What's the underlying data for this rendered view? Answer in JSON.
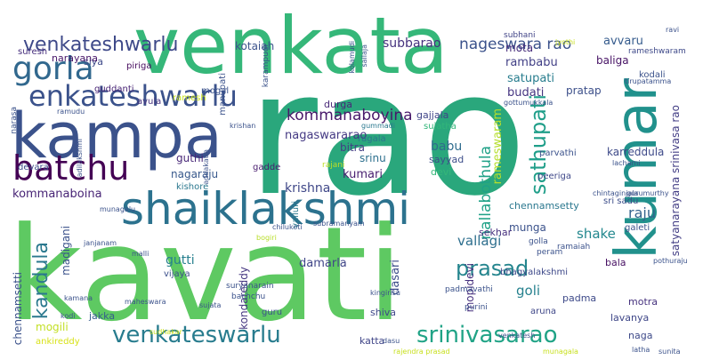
{
  "words": [
    {
      "text": "rao",
      "color": "#2aa77c"
    },
    {
      "text": "kavati",
      "color": "#5ec962"
    },
    {
      "text": "venkata",
      "color": "#35b779"
    },
    {
      "text": "kampa",
      "color": "#3b528b"
    },
    {
      "text": "kumar",
      "color": "#21918c"
    },
    {
      "text": "shaiklakshmi",
      "color": "#2c728e"
    },
    {
      "text": "batchu",
      "color": "#440154"
    },
    {
      "text": "gorla",
      "color": "#31688e"
    },
    {
      "text": "enkateshwarlu",
      "color": "#3b528b"
    },
    {
      "text": "venkateshwarlu",
      "color": "#3e4989"
    },
    {
      "text": "venkateswarlu",
      "color": "#287c8e"
    },
    {
      "text": "srinivasarao",
      "color": "#20a386"
    },
    {
      "text": "sathupati",
      "color": "#1f9e89"
    },
    {
      "text": "prasad",
      "color": "#25858e"
    },
    {
      "text": "kandula",
      "color": "#2a788e"
    },
    {
      "text": "nageswara rao",
      "color": "#3b528b"
    },
    {
      "text": "subbarao",
      "color": "#46327e"
    },
    {
      "text": "avvaru",
      "color": "#365c8d"
    },
    {
      "text": "kommanaboyina",
      "color": "#48186a"
    },
    {
      "text": "nagaswararao",
      "color": "#443983"
    },
    {
      "text": "nallabothula",
      "color": "#1fa187"
    },
    {
      "text": "rameswaram",
      "color": "#b5de2b"
    },
    {
      "text": "karreddula",
      "color": "#3e4a89"
    },
    {
      "text": "satyanarayana srinivasa rao",
      "color": "#433e85"
    },
    {
      "text": "kommanaboina",
      "color": "#482576"
    },
    {
      "text": "babu",
      "color": "#2f6c8e"
    },
    {
      "text": "krishna",
      "color": "#3f4788"
    },
    {
      "text": "vallagi",
      "color": "#2e6f8e"
    },
    {
      "text": "raju",
      "color": "#33638d"
    },
    {
      "text": "shake",
      "color": "#23888e"
    },
    {
      "text": "goli",
      "color": "#26818e"
    },
    {
      "text": "gutti",
      "color": "#27808e"
    },
    {
      "text": "madigani",
      "color": "#3b528b"
    },
    {
      "text": "damarla",
      "color": "#404688"
    },
    {
      "text": "dasari",
      "color": "#3d4d8a"
    },
    {
      "text": "mopidevi",
      "color": "#46307e"
    },
    {
      "text": "kondareddy",
      "color": "#453781"
    },
    {
      "text": "chennamsetti",
      "color": "#3b528b"
    },
    {
      "text": "mogili",
      "color": "#c2df23"
    },
    {
      "text": "ankireddy",
      "color": "#d8e219"
    },
    {
      "text": "jakka",
      "color": "#365d8d"
    },
    {
      "text": "katta",
      "color": "#404688"
    },
    {
      "text": "lavanya",
      "color": "#3f4788"
    },
    {
      "text": "naga",
      "color": "#3e4a89"
    },
    {
      "text": "padma",
      "color": "#3e4a89"
    },
    {
      "text": "motra",
      "color": "#46327e"
    },
    {
      "text": "shiva",
      "color": "#3f4889"
    },
    {
      "text": "bala",
      "color": "#471063"
    },
    {
      "text": "nagaraju",
      "color": "#38598c"
    },
    {
      "text": "kumari",
      "color": "#481f70"
    },
    {
      "text": "srinu",
      "color": "#2d708e"
    },
    {
      "text": "guthi",
      "color": "#482878"
    },
    {
      "text": "bitra",
      "color": "#433d84"
    },
    {
      "text": "durga",
      "color": "#482878"
    },
    {
      "text": "ragala",
      "color": "#2b758e"
    },
    {
      "text": "sujatha",
      "color": "#32b67a"
    },
    {
      "text": "gajjala",
      "color": "#404588"
    },
    {
      "text": "budati",
      "color": "#453581"
    },
    {
      "text": "satupati",
      "color": "#287d8e"
    },
    {
      "text": "rambabu",
      "color": "#424086"
    },
    {
      "text": "baliga",
      "color": "#471365"
    },
    {
      "text": "pratap",
      "color": "#3c4f8a"
    },
    {
      "text": "mota",
      "color": "#472d7b"
    },
    {
      "text": "kotaiah",
      "color": "#3b528b"
    },
    {
      "text": "siya",
      "color": "#3e4989"
    },
    {
      "text": "narayana",
      "color": "#481769"
    },
    {
      "text": "suresh",
      "color": "#472f7d"
    },
    {
      "text": "piriga",
      "color": "#460b5e"
    },
    {
      "text": "mogal",
      "color": "#3b528b"
    },
    {
      "text": "ramesh",
      "color": "#c8e020"
    },
    {
      "text": "avula",
      "color": "#46337f"
    },
    {
      "text": "guddanti",
      "color": "#482475"
    },
    {
      "text": "munga",
      "color": "#3b528b"
    },
    {
      "text": "sekhar",
      "color": "#46307e"
    },
    {
      "text": "devara",
      "color": "#3d4e8a"
    },
    {
      "text": "kishore",
      "color": "#2a778e"
    },
    {
      "text": "gadde",
      "color": "#481c6e"
    },
    {
      "text": "sayyad",
      "color": "#3d4e8a"
    },
    {
      "text": "devi",
      "color": "#35b779"
    },
    {
      "text": "peeriga",
      "color": "#3f4889"
    },
    {
      "text": "parvathi",
      "color": "#3b528b"
    },
    {
      "text": "chennamsetty",
      "color": "#2a778e"
    },
    {
      "text": "sri sadu",
      "color": "#3d4e8a"
    },
    {
      "text": "vijaya",
      "color": "#3c508b"
    },
    {
      "text": "guru",
      "color": "#3b528b"
    },
    {
      "text": "bhagyalakshmi",
      "color": "#3e4989"
    },
    {
      "text": "aruna",
      "color": "#3f4788"
    },
    {
      "text": "galeti",
      "color": "#3b528b"
    },
    {
      "text": "kodali",
      "color": "#3b528b"
    },
    {
      "text": "subhani",
      "color": "#414487"
    },
    {
      "text": "rameshwaram",
      "color": "#3e4989"
    },
    {
      "text": "gummadi",
      "color": "#2a788e"
    },
    {
      "text": "bogiri",
      "color": "#b8de29"
    },
    {
      "text": "bachchu",
      "color": "#3b528b"
    },
    {
      "text": "suryanarain",
      "color": "#3b528b"
    },
    {
      "text": "purini",
      "color": "#3b528b"
    },
    {
      "text": "padmavathi",
      "color": "#3b528b"
    },
    {
      "text": "valluri",
      "color": "#2a788e"
    },
    {
      "text": "rajani",
      "color": "#bddf26"
    },
    {
      "text": "manupati",
      "color": "#3b528b"
    },
    {
      "text": "karampudi",
      "color": "#3b528b"
    },
    {
      "text": "kolamudi",
      "color": "#3b528b"
    },
    {
      "text": "sailaja",
      "color": "#3b528b"
    },
    {
      "text": "gottumukkala",
      "color": "#3b528b"
    },
    {
      "text": "peram",
      "color": "#3b528b"
    },
    {
      "text": "golla",
      "color": "#3b528b"
    },
    {
      "text": "ramaiah",
      "color": "#3b528b"
    },
    {
      "text": "gurumurthy",
      "color": "#3b528b"
    },
    {
      "text": "venkatesh",
      "color": "#3b528b"
    },
    {
      "text": "sudhakar",
      "color": "#c8e020"
    },
    {
      "text": "rajendra prasad",
      "color": "#c8e020"
    },
    {
      "text": "munagala",
      "color": "#c8e020"
    },
    {
      "text": "dasu",
      "color": "#3b528b"
    },
    {
      "text": "latha",
      "color": "#3b528b"
    },
    {
      "text": "sunita",
      "color": "#3b528b"
    },
    {
      "text": "narasa",
      "color": "#3b528b"
    },
    {
      "text": "maheswara",
      "color": "#3b528b"
    },
    {
      "text": "ramudu",
      "color": "#3b528b"
    },
    {
      "text": "krishan",
      "color": "#3b528b"
    },
    {
      "text": "janjanam",
      "color": "#3b528b"
    },
    {
      "text": "malli",
      "color": "#3b528b"
    },
    {
      "text": "kamana",
      "color": "#3b528b"
    },
    {
      "text": "sujata",
      "color": "#3b528b"
    },
    {
      "text": "kodi",
      "color": "#3b528b"
    },
    {
      "text": "tirupatamma",
      "color": "#3b528b"
    },
    {
      "text": "jyothi",
      "color": "#c8e020"
    },
    {
      "text": "ravi",
      "color": "#3b528b"
    },
    {
      "text": "chintaginjala",
      "color": "#3b528b"
    },
    {
      "text": "lachami",
      "color": "#3b528b"
    },
    {
      "text": "kingirisu",
      "color": "#3b528b"
    },
    {
      "text": "pothuraju",
      "color": "#3b528b"
    },
    {
      "text": "subramanyam",
      "color": "#3b528b"
    },
    {
      "text": "chilukoti",
      "color": "#3b528b"
    },
    {
      "text": "munagalu",
      "color": "#3b528b"
    },
    {
      "text": "addakatla",
      "color": "#3b528b"
    },
    {
      "text": "adilakshmi",
      "color": "#3b528b"
    }
  ]
}
